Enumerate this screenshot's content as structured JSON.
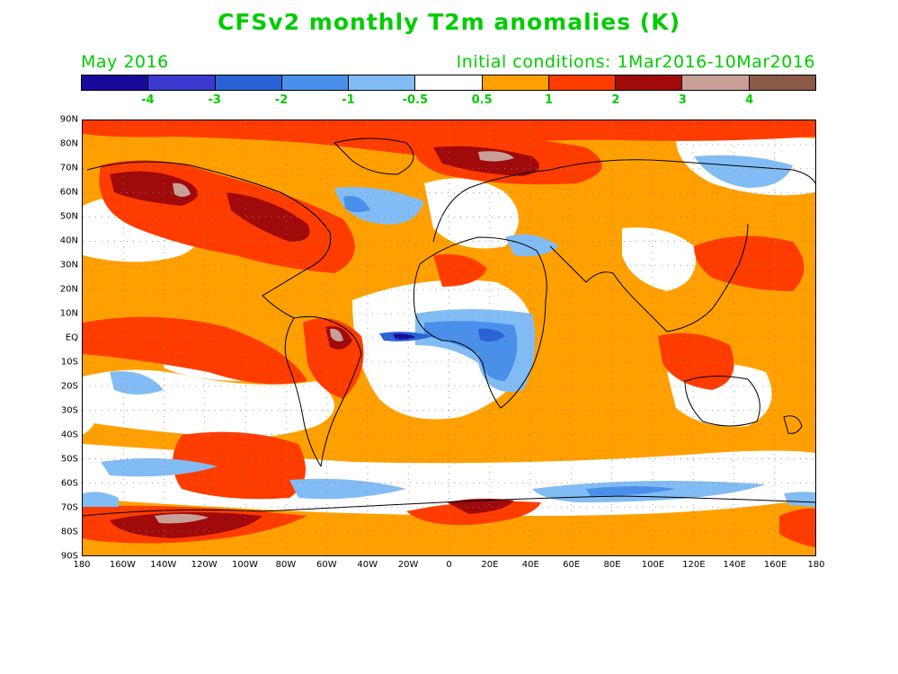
{
  "title": "CFSv2 monthly T2m anomalies (K)",
  "subtitle_left": "May 2016",
  "subtitle_right": "Initial conditions: 1Mar2016-10Mar2016",
  "colorbar": {
    "colors": [
      "#1a0a9a",
      "#3a3ad0",
      "#2a62d6",
      "#4a90ea",
      "#82bcf4",
      "#ffffff",
      "#ffa000",
      "#ff3c00",
      "#a00a0a",
      "#c8a098",
      "#8a5a48"
    ],
    "labels": [
      "-4",
      "-3",
      "-2",
      "-1",
      "-0.5",
      "0.5",
      "1",
      "2",
      "3",
      "4"
    ]
  },
  "map": {
    "lat_labels": [
      "90N",
      "80N",
      "70N",
      "60N",
      "50N",
      "40N",
      "30N",
      "20N",
      "10N",
      "EQ",
      "10S",
      "20S",
      "30S",
      "40S",
      "50S",
      "60S",
      "70S",
      "80S",
      "90S"
    ],
    "lon_labels": [
      "180",
      "160W",
      "140W",
      "120W",
      "100W",
      "80W",
      "60W",
      "40W",
      "20W",
      "0",
      "20E",
      "40E",
      "60E",
      "80E",
      "100E",
      "120E",
      "140E",
      "160E",
      "180"
    ]
  }
}
